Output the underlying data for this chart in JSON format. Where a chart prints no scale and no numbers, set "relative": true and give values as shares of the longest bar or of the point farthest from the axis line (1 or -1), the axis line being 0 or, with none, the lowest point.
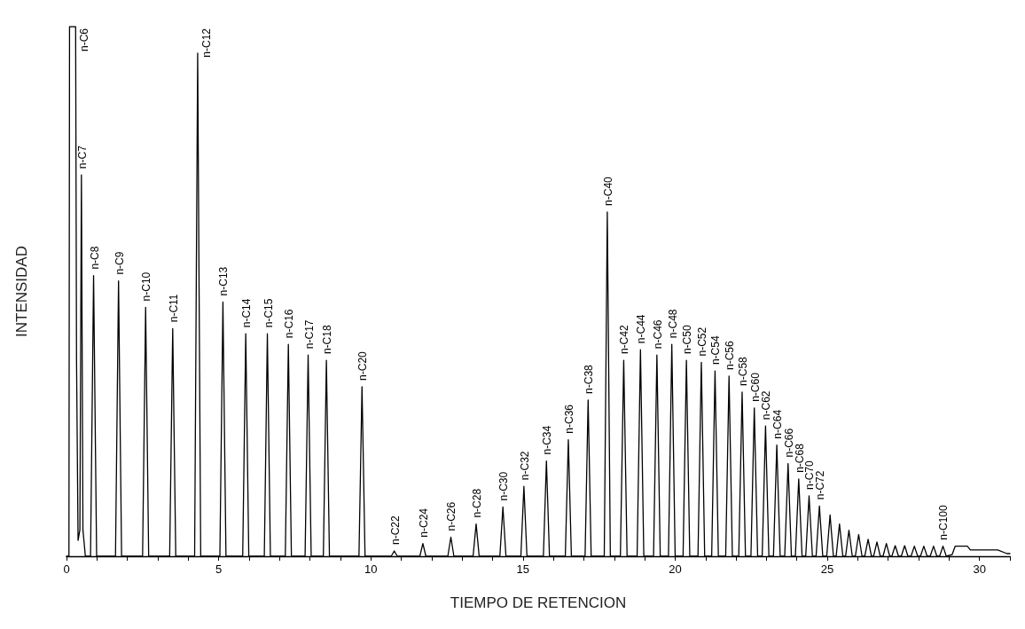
{
  "chart_data": {
    "type": "line",
    "relative": true,
    "xlabel": "TIEMPO DE RETENCION",
    "ylabel": "INTENSIDAD",
    "color": "#000000",
    "marker": "none",
    "grid": false,
    "xlim": [
      0,
      31
    ],
    "xticks": [
      0,
      {
        "value": 1,
        "label": null
      },
      {
        "value": 2,
        "label": null
      },
      {
        "value": 3,
        "label": null
      },
      {
        "value": 4,
        "label": null
      },
      5,
      {
        "value": 6,
        "label": null
      },
      {
        "value": 7,
        "label": null
      },
      {
        "value": 8,
        "label": null
      },
      {
        "value": 9,
        "label": null
      },
      10,
      {
        "value": 11,
        "label": null
      },
      {
        "value": 12,
        "label": null
      },
      {
        "value": 13,
        "label": null
      },
      {
        "value": 14,
        "label": null
      },
      15,
      {
        "value": 16,
        "label": null
      },
      {
        "value": 17,
        "label": null
      },
      {
        "value": 18,
        "label": null
      },
      {
        "value": 19,
        "label": null
      },
      20,
      {
        "value": 21,
        "label": null
      },
      {
        "value": 22,
        "label": null
      },
      {
        "value": 23,
        "label": null
      },
      {
        "value": 24,
        "label": null
      },
      25,
      {
        "value": 26,
        "label": null
      },
      {
        "value": 27,
        "label": null
      },
      {
        "value": 28,
        "label": null
      },
      {
        "value": 29,
        "label": null
      },
      30,
      {
        "value": 31,
        "label": null
      }
    ],
    "x": [
      0,
      0.08,
      0.1,
      0.3,
      0.33,
      0.38,
      0.44,
      0.49,
      0.54,
      0.62,
      0.79,
      0.89,
      0.99,
      1.61,
      1.71,
      1.81,
      2.5,
      2.6,
      2.7,
      3.39,
      3.49,
      3.59,
      4.21,
      4.31,
      4.41,
      5.04,
      5.14,
      5.24,
      5.79,
      5.89,
      5.99,
      6.5,
      6.6,
      6.7,
      7.19,
      7.29,
      7.39,
      7.84,
      7.94,
      8.04,
      8.44,
      8.54,
      8.64,
      9.61,
      9.71,
      9.81,
      10.67,
      10.77,
      10.87,
      11.61,
      11.71,
      11.81,
      12.53,
      12.63,
      12.73,
      13.36,
      13.46,
      13.56,
      14.24,
      14.34,
      14.44,
      14.93,
      15.03,
      15.13,
      15.67,
      15.77,
      15.87,
      16.39,
      16.49,
      16.59,
      17.04,
      17.14,
      17.24,
      17.67,
      17.77,
      17.87,
      18.2,
      18.31,
      18.42,
      18.75,
      18.86,
      18.97,
      19.29,
      19.4,
      19.51,
      19.78,
      19.89,
      20.0,
      20.26,
      20.37,
      20.48,
      20.75,
      20.86,
      20.97,
      21.2,
      21.31,
      21.42,
      21.66,
      21.77,
      21.88,
      22.09,
      22.2,
      22.31,
      22.49,
      22.6,
      22.71,
      22.86,
      22.97,
      23.08,
      23.23,
      23.34,
      23.45,
      23.6,
      23.71,
      23.82,
      23.95,
      24.06,
      24.17,
      24.29,
      24.4,
      24.51,
      24.63,
      24.74,
      24.85,
      24.98,
      25.09,
      25.2,
      25.29,
      25.4,
      25.51,
      25.6,
      25.71,
      25.82,
      25.92,
      26.03,
      26.14,
      26.23,
      26.34,
      26.45,
      26.52,
      26.63,
      26.74,
      26.83,
      26.94,
      27.05,
      27.12,
      27.23,
      27.34,
      27.43,
      27.54,
      27.65,
      27.75,
      27.86,
      27.97,
      28.06,
      28.17,
      28.28,
      28.38,
      28.49,
      28.6,
      28.69,
      28.8,
      28.91,
      29.1,
      29.2,
      29.6,
      29.7,
      30.6,
      30.9,
      31
    ],
    "values": [
      0,
      0,
      1,
      1,
      0.37,
      0.03,
      0.05,
      0.72,
      0.05,
      0,
      0,
      0.53,
      0,
      0,
      0.52,
      0,
      0,
      0.47,
      0,
      0,
      0.43,
      0,
      0,
      0.95,
      0,
      0,
      0.48,
      0,
      0,
      0.42,
      0,
      0,
      0.42,
      0,
      0,
      0.4,
      0,
      0,
      0.38,
      0,
      0,
      0.37,
      0,
      0,
      0.32,
      0,
      0,
      0.01,
      0,
      0,
      0.024,
      0,
      0,
      0.036,
      0,
      0,
      0.061,
      0,
      0,
      0.093,
      0,
      0,
      0.132,
      0,
      0,
      0.18,
      0,
      0,
      0.22,
      0,
      0,
      0.295,
      0,
      0,
      0.65,
      0,
      0,
      0.37,
      0,
      0,
      0.39,
      0,
      0,
      0.38,
      0,
      0,
      0.4,
      0,
      0,
      0.37,
      0,
      0,
      0.366,
      0,
      0,
      0.35,
      0,
      0,
      0.34,
      0,
      0,
      0.31,
      0,
      0,
      0.28,
      0,
      0,
      0.246,
      0,
      0,
      0.21,
      0,
      0,
      0.175,
      0,
      0,
      0.146,
      0,
      0,
      0.114,
      0,
      0,
      0.095,
      0,
      0,
      0.078,
      0,
      0,
      0.061,
      0,
      0,
      0.049,
      0,
      0,
      0.041,
      0,
      0,
      0.032,
      0,
      0,
      0.027,
      0,
      0,
      0.024,
      0,
      0,
      0.02,
      0,
      0,
      0.02,
      0,
      0,
      0.019,
      0,
      0,
      0.019,
      0,
      0,
      0.019,
      0,
      0,
      0.019,
      0,
      0.003,
      0.019,
      0.019,
      0.012,
      0.012,
      0.005,
      0.005
    ],
    "annotations": [
      {
        "text": "n-C6",
        "x": 0.3,
        "y": 1
      },
      {
        "text": "n-C7",
        "x": 0.49,
        "y": 0.72
      },
      {
        "text": "n-C8",
        "x": 0.89,
        "y": 0.53
      },
      {
        "text": "n-C9",
        "x": 1.71,
        "y": 0.52
      },
      {
        "text": "n-C10",
        "x": 2.6,
        "y": 0.47
      },
      {
        "text": "n-C11",
        "x": 3.49,
        "y": 0.43
      },
      {
        "text": "n-C12",
        "x": 4.31,
        "y": 0.95
      },
      {
        "text": "n-C13",
        "x": 5.14,
        "y": 0.48
      },
      {
        "text": "n-C14",
        "x": 5.89,
        "y": 0.42
      },
      {
        "text": "n-C15",
        "x": 6.6,
        "y": 0.42
      },
      {
        "text": "n-C16",
        "x": 7.29,
        "y": 0.4
      },
      {
        "text": "n-C17",
        "x": 7.94,
        "y": 0.38
      },
      {
        "text": "n-C18",
        "x": 8.54,
        "y": 0.37
      },
      {
        "text": "n-C20",
        "x": 9.71,
        "y": 0.32
      },
      {
        "text": "n-C22",
        "x": 10.77,
        "y": 0.01
      },
      {
        "text": "n-C24",
        "x": 11.71,
        "y": 0.024
      },
      {
        "text": "n-C26",
        "x": 12.63,
        "y": 0.036
      },
      {
        "text": "n-C28",
        "x": 13.46,
        "y": 0.061
      },
      {
        "text": "n-C30",
        "x": 14.34,
        "y": 0.093
      },
      {
        "text": "n-C32",
        "x": 15.03,
        "y": 0.132
      },
      {
        "text": "n-C34",
        "x": 15.77,
        "y": 0.18
      },
      {
        "text": "n-C36",
        "x": 16.49,
        "y": 0.22
      },
      {
        "text": "n-C38",
        "x": 17.14,
        "y": 0.295
      },
      {
        "text": "n-C40",
        "x": 17.77,
        "y": 0.65
      },
      {
        "text": "n-C42",
        "x": 18.31,
        "y": 0.37
      },
      {
        "text": "n-C44",
        "x": 18.86,
        "y": 0.39
      },
      {
        "text": "n-C46",
        "x": 19.4,
        "y": 0.38
      },
      {
        "text": "n-C48",
        "x": 19.89,
        "y": 0.4
      },
      {
        "text": "n-C50",
        "x": 20.37,
        "y": 0.37
      },
      {
        "text": "n-C52",
        "x": 20.86,
        "y": 0.366
      },
      {
        "text": "n-C54",
        "x": 21.31,
        "y": 0.35
      },
      {
        "text": "n-C56",
        "x": 21.77,
        "y": 0.34
      },
      {
        "text": "n-C58",
        "x": 22.2,
        "y": 0.31
      },
      {
        "text": "n-C60",
        "x": 22.6,
        "y": 0.28
      },
      {
        "text": "n-C62",
        "x": 22.97,
        "y": 0.246
      },
      {
        "text": "n-C64",
        "x": 23.34,
        "y": 0.21
      },
      {
        "text": "n-C66",
        "x": 23.71,
        "y": 0.175
      },
      {
        "text": "n-C68",
        "x": 24.06,
        "y": 0.146
      },
      {
        "text": "n-C70",
        "x": 24.4,
        "y": 0.114
      },
      {
        "text": "n-C72",
        "x": 24.74,
        "y": 0.095
      },
      {
        "text": "n-C100",
        "x": 28.8,
        "y": 0.019
      }
    ]
  }
}
